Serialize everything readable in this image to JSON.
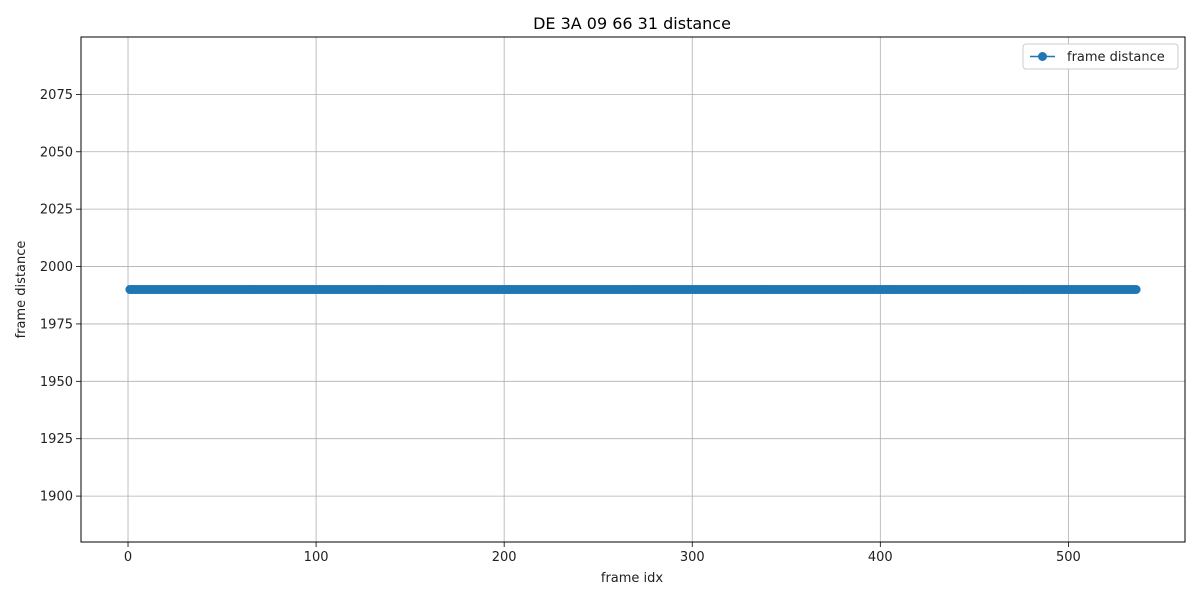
{
  "chart_data": {
    "type": "line",
    "title": "DE 3A 09 66 31 distance",
    "xlabel": "frame idx",
    "ylabel": "frame distance",
    "xlim": [
      -25,
      562
    ],
    "ylim": [
      1880,
      2100
    ],
    "xticks": [
      0,
      100,
      200,
      300,
      400,
      500
    ],
    "yticks": [
      1900,
      1925,
      1950,
      1975,
      2000,
      2025,
      2050,
      2075
    ],
    "grid": true,
    "legend_position": "top-right",
    "series": [
      {
        "name": "frame distance",
        "color": "#1f77b4",
        "marker": "circle",
        "x_start": 1,
        "x_end": 536,
        "x_step": 1,
        "constant_value": 1990
      }
    ]
  }
}
